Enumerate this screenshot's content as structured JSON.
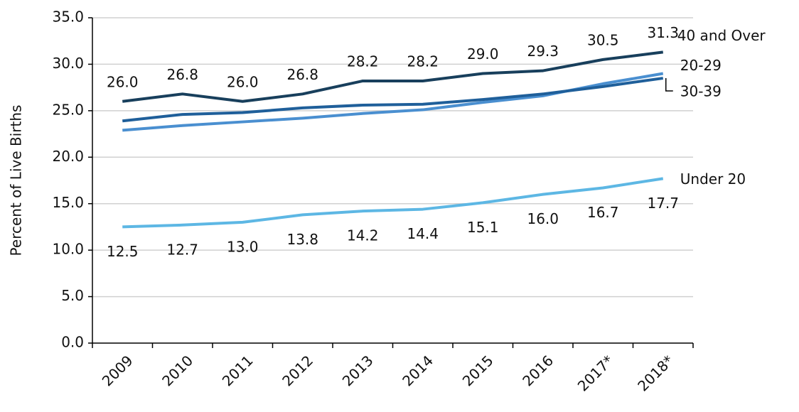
{
  "chart_data": {
    "type": "line",
    "y_axis_label": "Percent of Live Births",
    "categories": [
      "2009",
      "2010",
      "2011",
      "2012",
      "2013",
      "2014",
      "2015",
      "2016",
      "2017*",
      "2018*"
    ],
    "series": [
      {
        "name": "40 and Over",
        "color": "#183f5c",
        "values": [
          26.0,
          26.8,
          26.0,
          26.8,
          28.2,
          28.2,
          29.0,
          29.3,
          30.5,
          31.3
        ],
        "value_labels": [
          "26.0",
          "26.8",
          "26.0",
          "26.8",
          "28.2",
          "28.2",
          "29.0",
          "29.3",
          "30.5",
          "31.3"
        ]
      },
      {
        "name": "20-29",
        "color": "#4a8fd0",
        "values": [
          22.9,
          23.4,
          23.8,
          24.2,
          24.7,
          25.1,
          25.9,
          26.6,
          27.9,
          29.0
        ]
      },
      {
        "name": "30-39",
        "color": "#1f5f9a",
        "values": [
          23.9,
          24.6,
          24.8,
          25.3,
          25.6,
          25.7,
          26.2,
          26.8,
          27.6,
          28.5
        ]
      },
      {
        "name": "Under 20",
        "color": "#5db7e4",
        "values": [
          12.5,
          12.7,
          13.0,
          13.8,
          14.2,
          14.4,
          15.1,
          16.0,
          16.7,
          17.7
        ],
        "value_labels": [
          "12.5",
          "12.7",
          "13.0",
          "13.8",
          "14.2",
          "14.4",
          "15.1",
          "16.0",
          "16.7",
          "17.7"
        ]
      }
    ],
    "ylim": [
      0,
      35
    ],
    "yticks": [
      {
        "value": 0,
        "label": "0.0"
      },
      {
        "value": 5,
        "label": "5.0"
      },
      {
        "value": 10,
        "label": "10.0"
      },
      {
        "value": 15,
        "label": "15.0"
      },
      {
        "value": 20,
        "label": "20.0"
      },
      {
        "value": 25,
        "label": "25.0"
      },
      {
        "value": 30,
        "label": "30.0"
      },
      {
        "value": 35,
        "label": "35.0"
      }
    ],
    "grid": true
  }
}
